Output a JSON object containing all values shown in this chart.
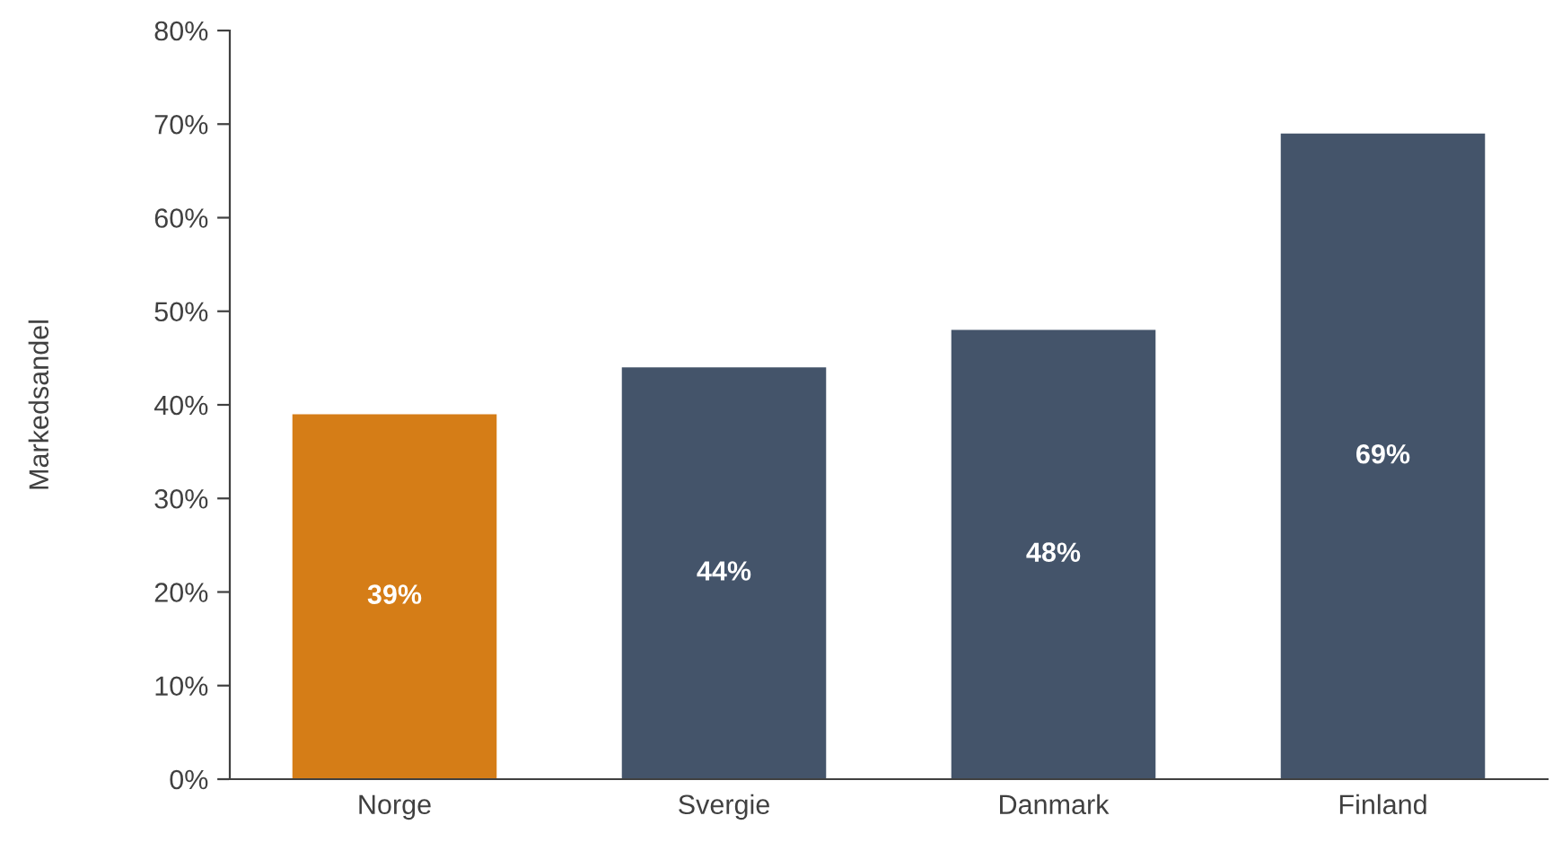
{
  "chart_data": {
    "type": "bar",
    "ylabel": "Markedsandel",
    "categories": [
      "Norge",
      "Svergie",
      "Danmark",
      "Finland"
    ],
    "values": [
      39,
      44,
      48,
      69
    ],
    "colors": [
      "#d57d17",
      "#44546a",
      "#44546a",
      "#44546a"
    ],
    "value_labels": [
      "39%",
      "44%",
      "48%",
      "69%"
    ],
    "ylim": [
      0,
      80
    ],
    "yticks": [
      {
        "value": 0,
        "label": "0%"
      },
      {
        "value": 10,
        "label": "10%"
      },
      {
        "value": 20,
        "label": "20%"
      },
      {
        "value": 30,
        "label": "30%"
      },
      {
        "value": 40,
        "label": "40%"
      },
      {
        "value": 50,
        "label": "50%"
      },
      {
        "value": 60,
        "label": "60%"
      },
      {
        "value": 70,
        "label": "70%"
      },
      {
        "value": 80,
        "label": "80%"
      }
    ],
    "grid": false,
    "legend": false
  }
}
